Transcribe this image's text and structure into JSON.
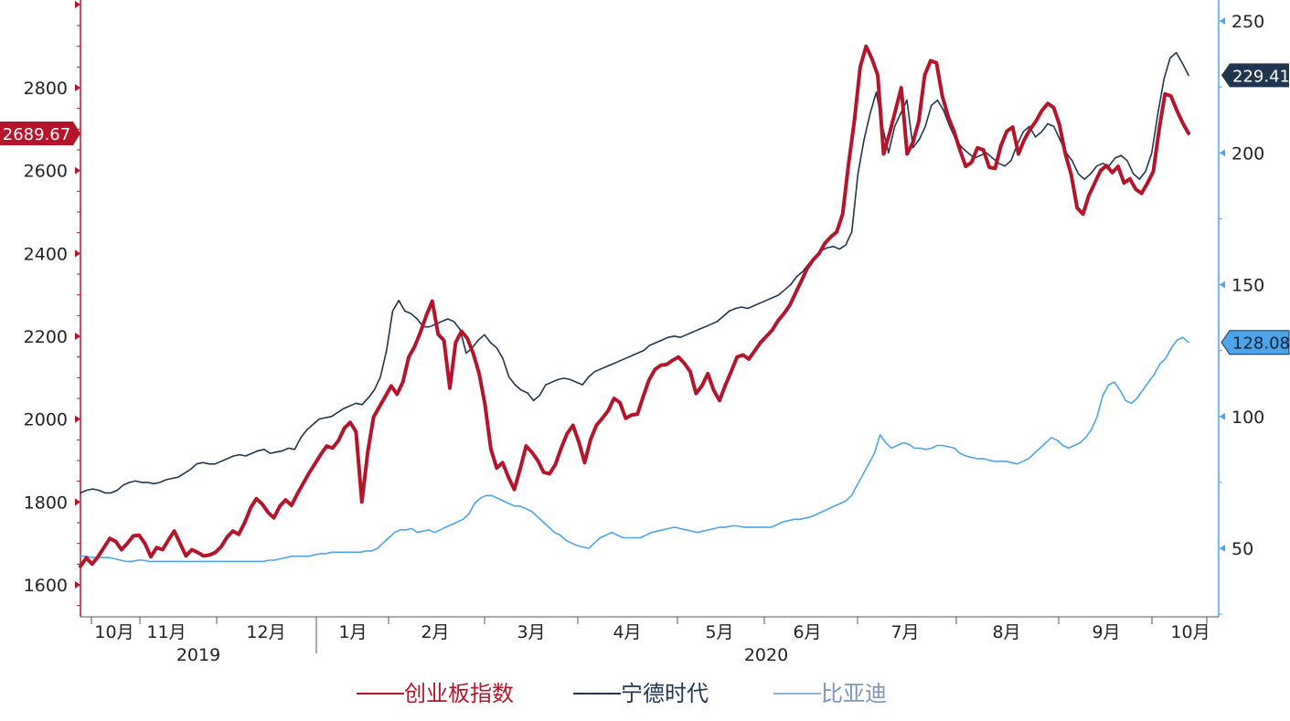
{
  "chart_data": {
    "type": "line",
    "left_axis": {
      "ticks": [
        1600,
        1800,
        2000,
        2200,
        2400,
        2600,
        2800
      ],
      "range": [
        1520,
        2990
      ],
      "color": "#b5152b"
    },
    "right_axis": {
      "ticks": [
        50,
        100,
        150,
        200,
        250
      ],
      "range": [
        28,
        255
      ],
      "color": "#4ea4e8"
    },
    "x_month_labels": [
      "10月",
      "11月",
      "12月",
      "1月",
      "2月",
      "3月",
      "4月",
      "5月",
      "6月",
      "7月",
      "8月",
      "9月",
      "10月"
    ],
    "x_year_labels": [
      "2019",
      "2020"
    ],
    "last_value_labels": {
      "cyb": "2689.67",
      "catl": "229.41",
      "byd": "128.08"
    },
    "series": [
      {
        "key": "cyb",
        "name": "创业板指数",
        "axis": "left",
        "color": "#b5152b",
        "values": [
          1645,
          1665,
          1650,
          1668,
          1690,
          1712,
          1705,
          1685,
          1700,
          1718,
          1720,
          1700,
          1668,
          1690,
          1685,
          1708,
          1730,
          1700,
          1670,
          1685,
          1678,
          1670,
          1672,
          1678,
          1692,
          1715,
          1730,
          1722,
          1750,
          1785,
          1808,
          1795,
          1775,
          1762,
          1790,
          1805,
          1792,
          1820,
          1845,
          1870,
          1892,
          1915,
          1935,
          1930,
          1948,
          1978,
          1992,
          1970,
          1800,
          1920,
          2005,
          2030,
          2055,
          2080,
          2060,
          2090,
          2150,
          2175,
          2210,
          2250,
          2285,
          2205,
          2190,
          2075,
          2185,
          2212,
          2195,
          2158,
          2110,
          2035,
          1928,
          1882,
          1895,
          1860,
          1830,
          1880,
          1935,
          1920,
          1900,
          1872,
          1868,
          1890,
          1930,
          1965,
          1985,
          1945,
          1895,
          1950,
          1985,
          2002,
          2020,
          2050,
          2040,
          2002,
          2010,
          2012,
          2055,
          2095,
          2120,
          2130,
          2132,
          2142,
          2150,
          2135,
          2115,
          2062,
          2080,
          2110,
          2070,
          2045,
          2082,
          2115,
          2150,
          2155,
          2145,
          2165,
          2185,
          2200,
          2215,
          2238,
          2255,
          2275,
          2305,
          2335,
          2365,
          2385,
          2400,
          2425,
          2440,
          2452,
          2495,
          2615,
          2720,
          2850,
          2900,
          2870,
          2830,
          2640,
          2690,
          2745,
          2800,
          2640,
          2668,
          2720,
          2830,
          2865,
          2860,
          2780,
          2730,
          2695,
          2650,
          2610,
          2620,
          2655,
          2650,
          2608,
          2605,
          2660,
          2695,
          2705,
          2640,
          2675,
          2700,
          2720,
          2745,
          2762,
          2752,
          2710,
          2640,
          2590,
          2510,
          2495,
          2540,
          2570,
          2600,
          2612,
          2595,
          2610,
          2570,
          2580,
          2555,
          2545,
          2570,
          2598,
          2700,
          2785,
          2780,
          2745,
          2715,
          2690
        ]
      },
      {
        "key": "catl",
        "name": "宁德时代",
        "axis": "right",
        "color": "#1f3550",
        "values": [
          71,
          72,
          72.5,
          72,
          71,
          71,
          72,
          74,
          75,
          75.5,
          75,
          75,
          74.5,
          75,
          76,
          76.5,
          77,
          78.5,
          80,
          82,
          82.5,
          82,
          82,
          83,
          84,
          85,
          85.5,
          85,
          86,
          87,
          87.5,
          86,
          86.5,
          87,
          88,
          87.5,
          92,
          95,
          97,
          99,
          99.5,
          100,
          101.5,
          103,
          104,
          105,
          104.5,
          107,
          110,
          115,
          125,
          140,
          144,
          140,
          139,
          137,
          134,
          134,
          135,
          136,
          137,
          136,
          133,
          124,
          126,
          129,
          131,
          128,
          126,
          122,
          115,
          112,
          110,
          109,
          106,
          108,
          112,
          113,
          114,
          114.5,
          114,
          113,
          112,
          115,
          117,
          118,
          119,
          120,
          121,
          122,
          123,
          124,
          125,
          127,
          128,
          129,
          130,
          130.5,
          130,
          131,
          132,
          133,
          134,
          135,
          136,
          138,
          140,
          141,
          141.5,
          141,
          142,
          143,
          144,
          145,
          146,
          148,
          150,
          153,
          155,
          158,
          160,
          163,
          164,
          164.5,
          163.5,
          165,
          170,
          192,
          205,
          215,
          223,
          210,
          200,
          210,
          215,
          220,
          202,
          205,
          210,
          218,
          220,
          216,
          210,
          205,
          202,
          200,
          198,
          199,
          200,
          198,
          196,
          195,
          197,
          203,
          208,
          210,
          206,
          208,
          211,
          210,
          205,
          200,
          197,
          192,
          190,
          192,
          195,
          196,
          195,
          198,
          199,
          197,
          192,
          190,
          193,
          200,
          215,
          228,
          236,
          238,
          234,
          229.41
        ]
      },
      {
        "key": "byd",
        "name": "比亚迪",
        "axis": "right",
        "color": "#4ea4e8",
        "values": [
          47,
          47,
          46.5,
          46.5,
          46.5,
          46.5,
          46,
          45.5,
          45,
          45,
          45.5,
          45.5,
          45,
          45,
          45,
          45,
          45,
          45,
          45,
          45,
          45,
          45,
          45,
          45,
          45,
          45,
          45,
          45,
          45,
          45,
          45,
          45,
          45,
          45.5,
          45.5,
          46,
          46.5,
          47,
          47,
          47,
          47,
          47.5,
          48,
          48,
          48.5,
          48.5,
          48.5,
          48.5,
          48.5,
          48.5,
          49,
          49,
          50,
          52,
          54,
          56,
          57,
          57,
          57.5,
          56,
          56.5,
          57,
          56,
          57,
          58,
          59,
          60,
          61,
          63,
          67,
          69,
          70,
          70,
          69,
          68,
          67,
          66,
          66,
          65,
          64,
          62,
          60,
          58,
          56,
          55,
          53,
          52,
          51,
          50.5,
          50,
          52,
          54,
          55,
          56,
          55,
          54,
          54,
          54,
          54,
          55,
          56,
          56.5,
          57,
          57.5,
          58,
          57.5,
          57,
          56.5,
          56,
          56.5,
          57,
          57.5,
          58,
          58,
          58.5,
          58.5,
          58,
          58,
          58,
          58,
          58,
          58,
          59,
          60,
          60.5,
          61,
          61,
          61.5,
          62,
          63,
          64,
          65,
          66,
          67,
          68,
          70,
          74,
          78,
          82,
          86,
          93,
          90,
          88,
          89,
          90,
          89.5,
          88,
          88,
          87.5,
          88,
          89,
          89,
          88.5,
          88,
          86,
          85,
          84.5,
          84,
          84,
          83.5,
          83,
          83,
          83,
          82.5,
          82,
          83,
          84,
          86,
          88,
          90,
          92,
          91,
          89,
          88,
          89,
          90,
          92,
          95,
          100,
          108,
          112,
          113,
          110,
          106,
          105,
          107,
          110,
          113,
          116,
          120,
          122,
          126,
          129,
          130,
          128.08
        ]
      }
    ]
  }
}
